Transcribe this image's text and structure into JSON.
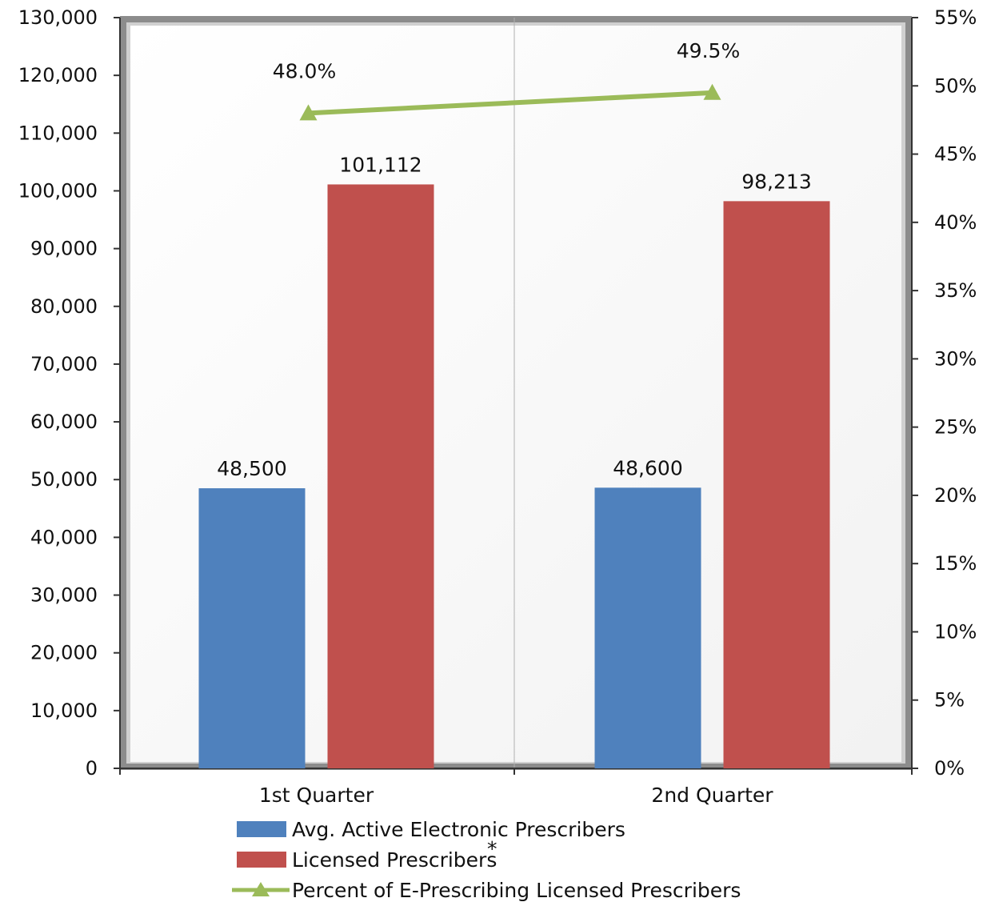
{
  "chart_data": {
    "type": "bar",
    "categories": [
      "1st Quarter",
      "2nd Quarter"
    ],
    "series": [
      {
        "name": "Avg. Active Electronic Prescribers",
        "kind": "bar",
        "axis": "left",
        "color": "#4f81bd",
        "values": [
          48500,
          48600
        ],
        "labels": [
          "48,500",
          "48,600"
        ]
      },
      {
        "name": "Licensed Prescribers",
        "kind": "bar",
        "axis": "left",
        "color": "#c0504d",
        "values": [
          101112,
          98213
        ],
        "labels": [
          "101,112",
          "98,213"
        ]
      },
      {
        "name": "Percent of E-Prescribing Licensed Prescribers",
        "kind": "line",
        "marker": "triangle",
        "axis": "right",
        "color": "#9bbb59",
        "values": [
          48.0,
          49.5
        ],
        "labels": [
          "48.0%",
          "49.5%"
        ]
      }
    ],
    "legend_asterisk": "*",
    "y_left": {
      "min": 0,
      "max": 130000,
      "step": 10000,
      "ticks": [
        "0",
        "10,000",
        "20,000",
        "30,000",
        "40,000",
        "50,000",
        "60,000",
        "70,000",
        "80,000",
        "90,000",
        "100,000",
        "110,000",
        "120,000",
        "130,000"
      ]
    },
    "y_right": {
      "min": 0,
      "max": 55,
      "step": 5,
      "ticks": [
        "0%",
        "5%",
        "10%",
        "15%",
        "20%",
        "25%",
        "30%",
        "35%",
        "40%",
        "45%",
        "50%",
        "55%"
      ]
    },
    "grid": false,
    "legend_position": "bottom"
  }
}
